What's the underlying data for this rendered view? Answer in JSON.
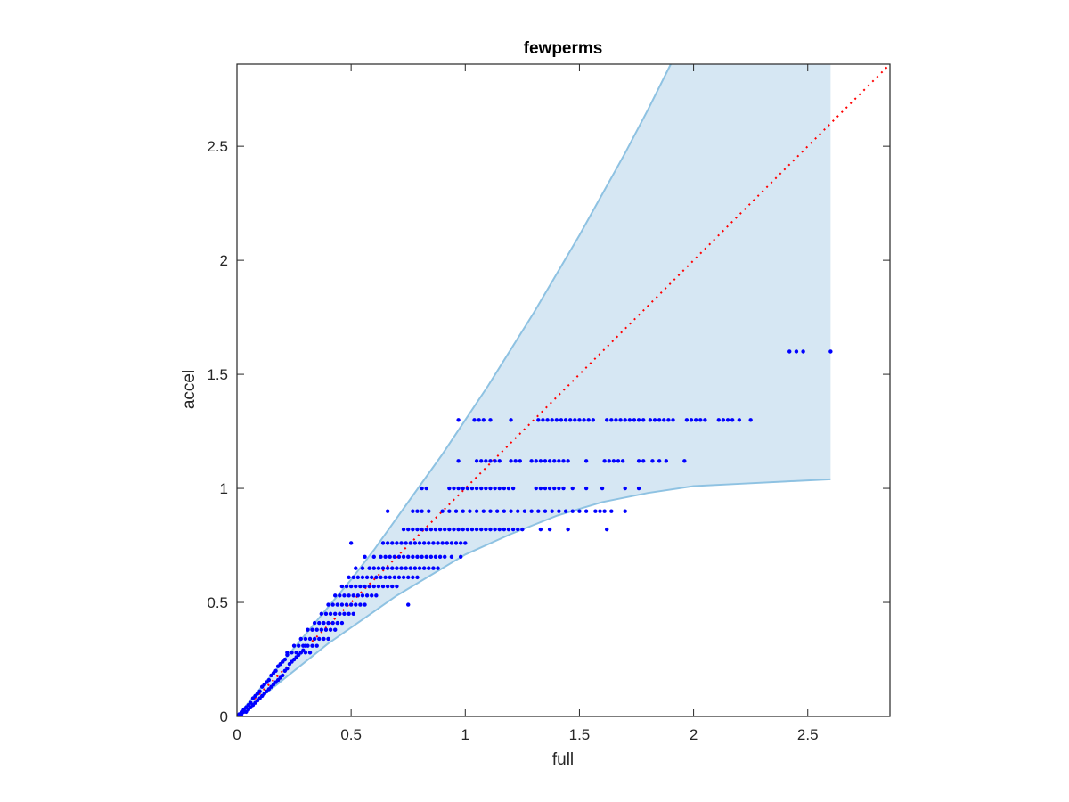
{
  "chart_data": {
    "type": "scatter",
    "title": "fewperms",
    "xlabel": "full",
    "ylabel": "accel",
    "xlim": [
      0,
      2.86
    ],
    "ylim": [
      0,
      2.86
    ],
    "xticks": [
      0,
      0.5,
      1,
      1.5,
      2,
      2.5
    ],
    "yticks": [
      0,
      0.5,
      1,
      1.5,
      2,
      2.5
    ],
    "xtick_labels": [
      "0",
      "0.5",
      "1",
      "1.5",
      "2",
      "2.5"
    ],
    "ytick_labels": [
      "0",
      "0.5",
      "1",
      "1.5",
      "2",
      "2.5"
    ],
    "grid": false,
    "colors": {
      "points": "#0000ff",
      "band_fill": "#d6e7f3",
      "band_edge": "#8ec2e2",
      "reference_line": "#ff0000",
      "axes": "#262626"
    },
    "reference_line": {
      "style": "dotted",
      "x": [
        0,
        2.86
      ],
      "y": [
        0,
        2.86
      ]
    },
    "band": {
      "upper": {
        "x": [
          0,
          0.1,
          0.2,
          0.3,
          0.4,
          0.5,
          0.6,
          0.7,
          0.8,
          0.9,
          1.0,
          1.1,
          1.2,
          1.3,
          1.4,
          1.5,
          1.6,
          1.7,
          1.8,
          1.9
        ],
        "y": [
          0,
          0.12,
          0.24,
          0.36,
          0.48,
          0.6,
          0.73,
          0.87,
          1.01,
          1.15,
          1.3,
          1.45,
          1.61,
          1.77,
          1.94,
          2.11,
          2.29,
          2.47,
          2.66,
          2.86
        ]
      },
      "right_x": 2.6,
      "lower": {
        "x": [
          0,
          0.1,
          0.2,
          0.3,
          0.4,
          0.5,
          0.6,
          0.7,
          0.8,
          0.9,
          1.0,
          1.2,
          1.4,
          1.6,
          1.8,
          2.0,
          2.2,
          2.4,
          2.6
        ],
        "y": [
          0,
          0.08,
          0.16,
          0.24,
          0.32,
          0.39,
          0.46,
          0.53,
          0.59,
          0.65,
          0.71,
          0.8,
          0.88,
          0.94,
          0.98,
          1.01,
          1.02,
          1.03,
          1.04
        ]
      }
    },
    "series": [
      {
        "x": [
          0.0,
          0.01,
          0.02,
          0.02,
          0.03,
          0.03,
          0.04,
          0.04,
          0.05,
          0.05,
          0.06,
          0.06,
          0.07,
          0.07,
          0.08,
          0.08,
          0.09,
          0.09,
          0.1,
          0.1,
          0.11,
          0.11,
          0.12,
          0.12,
          0.13,
          0.13,
          0.14,
          0.14,
          0.15,
          0.15,
          0.16,
          0.16,
          0.17,
          0.17,
          0.18,
          0.18,
          0.19,
          0.19,
          0.2,
          0.2,
          0.21,
          0.21,
          0.22,
          0.22,
          0.23,
          0.24,
          0.25,
          0.26,
          0.27,
          0.28,
          0.29,
          0.3,
          0.22,
          0.24,
          0.26,
          0.28,
          0.3,
          0.32,
          0.25,
          0.27,
          0.29,
          0.31,
          0.33,
          0.35,
          0.28,
          0.3,
          0.32,
          0.34,
          0.36,
          0.38,
          0.4,
          0.31,
          0.33,
          0.35,
          0.37,
          0.39,
          0.41,
          0.43,
          0.34,
          0.36,
          0.38,
          0.4,
          0.42,
          0.44,
          0.46,
          0.37,
          0.39,
          0.41,
          0.43,
          0.45,
          0.47,
          0.49,
          0.51,
          0.4,
          0.42,
          0.44,
          0.46,
          0.48,
          0.5,
          0.52,
          0.54,
          0.56,
          0.75,
          0.43,
          0.45,
          0.47,
          0.49,
          0.51,
          0.53,
          0.55,
          0.57,
          0.59,
          0.61,
          0.46,
          0.48,
          0.5,
          0.52,
          0.54,
          0.56,
          0.58,
          0.6,
          0.62,
          0.64,
          0.66,
          0.68,
          0.7,
          0.49,
          0.51,
          0.53,
          0.55,
          0.57,
          0.59,
          0.61,
          0.63,
          0.65,
          0.67,
          0.69,
          0.71,
          0.73,
          0.75,
          0.77,
          0.79,
          0.52,
          0.55,
          0.58,
          0.6,
          0.62,
          0.64,
          0.66,
          0.68,
          0.7,
          0.72,
          0.74,
          0.76,
          0.78,
          0.8,
          0.82,
          0.84,
          0.86,
          0.88,
          0.56,
          0.6,
          0.63,
          0.65,
          0.67,
          0.69,
          0.71,
          0.73,
          0.75,
          0.77,
          0.79,
          0.81,
          0.83,
          0.85,
          0.87,
          0.89,
          0.91,
          0.94,
          0.98,
          0.5,
          0.64,
          0.66,
          0.68,
          0.7,
          0.72,
          0.74,
          0.76,
          0.78,
          0.8,
          0.82,
          0.84,
          0.86,
          0.88,
          0.9,
          0.92,
          0.94,
          0.96,
          0.98,
          1.0,
          0.73,
          0.75,
          0.77,
          0.79,
          0.81,
          0.83,
          0.85,
          0.87,
          0.89,
          0.91,
          0.93,
          0.95,
          0.97,
          0.99,
          1.01,
          1.03,
          1.05,
          1.07,
          1.09,
          1.11,
          1.13,
          1.15,
          1.17,
          1.19,
          1.21,
          1.23,
          1.25,
          1.33,
          1.37,
          1.45,
          1.62,
          0.66,
          0.77,
          0.79,
          0.81,
          0.84,
          0.9,
          0.93,
          0.96,
          0.99,
          1.02,
          1.05,
          1.08,
          1.11,
          1.14,
          1.17,
          1.2,
          1.23,
          1.26,
          1.29,
          1.32,
          1.35,
          1.38,
          1.41,
          1.44,
          1.47,
          1.5,
          1.53,
          1.57,
          1.59,
          1.61,
          1.64,
          1.7,
          0.81,
          0.83,
          0.93,
          0.95,
          0.97,
          0.99,
          1.01,
          1.03,
          1.05,
          1.07,
          1.09,
          1.11,
          1.13,
          1.15,
          1.17,
          1.19,
          1.21,
          1.31,
          1.33,
          1.35,
          1.37,
          1.39,
          1.41,
          1.43,
          1.47,
          1.53,
          1.6,
          1.7,
          1.76,
          0.97,
          1.05,
          1.07,
          1.09,
          1.11,
          1.13,
          1.15,
          1.2,
          1.22,
          1.24,
          1.29,
          1.31,
          1.33,
          1.35,
          1.37,
          1.39,
          1.41,
          1.43,
          1.45,
          1.53,
          1.61,
          1.63,
          1.65,
          1.67,
          1.69,
          1.76,
          1.78,
          1.82,
          1.85,
          1.88,
          1.96,
          0.97,
          1.04,
          1.06,
          1.08,
          1.11,
          1.2,
          1.32,
          1.34,
          1.36,
          1.38,
          1.4,
          1.42,
          1.44,
          1.46,
          1.48,
          1.5,
          1.52,
          1.54,
          1.56,
          1.62,
          1.64,
          1.66,
          1.68,
          1.7,
          1.72,
          1.74,
          1.76,
          1.78,
          1.81,
          1.83,
          1.85,
          1.87,
          1.89,
          1.91,
          1.97,
          1.99,
          2.01,
          2.03,
          2.05,
          2.11,
          2.13,
          2.15,
          2.17,
          2.2,
          2.25,
          2.42,
          2.45,
          2.48,
          2.6
        ],
        "y": [
          0.0,
          0.01,
          0.02,
          0.01,
          0.03,
          0.02,
          0.04,
          0.02,
          0.05,
          0.03,
          0.06,
          0.04,
          0.08,
          0.05,
          0.09,
          0.06,
          0.1,
          0.07,
          0.11,
          0.08,
          0.13,
          0.09,
          0.14,
          0.1,
          0.15,
          0.11,
          0.16,
          0.12,
          0.18,
          0.13,
          0.19,
          0.14,
          0.2,
          0.15,
          0.22,
          0.16,
          0.23,
          0.17,
          0.24,
          0.18,
          0.25,
          0.2,
          0.27,
          0.21,
          0.23,
          0.24,
          0.25,
          0.26,
          0.27,
          0.28,
          0.29,
          0.31,
          0.28,
          0.28,
          0.28,
          0.28,
          0.28,
          0.28,
          0.31,
          0.31,
          0.31,
          0.31,
          0.31,
          0.31,
          0.34,
          0.34,
          0.34,
          0.34,
          0.34,
          0.34,
          0.34,
          0.38,
          0.38,
          0.38,
          0.38,
          0.38,
          0.38,
          0.38,
          0.41,
          0.41,
          0.41,
          0.41,
          0.41,
          0.41,
          0.41,
          0.45,
          0.45,
          0.45,
          0.45,
          0.45,
          0.45,
          0.45,
          0.45,
          0.49,
          0.49,
          0.49,
          0.49,
          0.49,
          0.49,
          0.49,
          0.49,
          0.49,
          0.49,
          0.53,
          0.53,
          0.53,
          0.53,
          0.53,
          0.53,
          0.53,
          0.53,
          0.53,
          0.53,
          0.57,
          0.57,
          0.57,
          0.57,
          0.57,
          0.57,
          0.57,
          0.57,
          0.57,
          0.57,
          0.57,
          0.57,
          0.57,
          0.61,
          0.61,
          0.61,
          0.61,
          0.61,
          0.61,
          0.61,
          0.61,
          0.61,
          0.61,
          0.61,
          0.61,
          0.61,
          0.61,
          0.61,
          0.61,
          0.65,
          0.65,
          0.65,
          0.65,
          0.65,
          0.65,
          0.65,
          0.65,
          0.65,
          0.65,
          0.65,
          0.65,
          0.65,
          0.65,
          0.65,
          0.65,
          0.65,
          0.65,
          0.7,
          0.7,
          0.7,
          0.7,
          0.7,
          0.7,
          0.7,
          0.7,
          0.7,
          0.7,
          0.7,
          0.7,
          0.7,
          0.7,
          0.7,
          0.7,
          0.7,
          0.7,
          0.7,
          0.76,
          0.76,
          0.76,
          0.76,
          0.76,
          0.76,
          0.76,
          0.76,
          0.76,
          0.76,
          0.76,
          0.76,
          0.76,
          0.76,
          0.76,
          0.76,
          0.76,
          0.76,
          0.76,
          0.76,
          0.82,
          0.82,
          0.82,
          0.82,
          0.82,
          0.82,
          0.82,
          0.82,
          0.82,
          0.82,
          0.82,
          0.82,
          0.82,
          0.82,
          0.82,
          0.82,
          0.82,
          0.82,
          0.82,
          0.82,
          0.82,
          0.82,
          0.82,
          0.82,
          0.82,
          0.82,
          0.82,
          0.82,
          0.82,
          0.82,
          0.82,
          0.9,
          0.9,
          0.9,
          0.9,
          0.9,
          0.9,
          0.9,
          0.9,
          0.9,
          0.9,
          0.9,
          0.9,
          0.9,
          0.9,
          0.9,
          0.9,
          0.9,
          0.9,
          0.9,
          0.9,
          0.9,
          0.9,
          0.9,
          0.9,
          0.9,
          0.9,
          0.9,
          0.9,
          0.9,
          0.9,
          0.9,
          0.9,
          1.0,
          1.0,
          1.0,
          1.0,
          1.0,
          1.0,
          1.0,
          1.0,
          1.0,
          1.0,
          1.0,
          1.0,
          1.0,
          1.0,
          1.0,
          1.0,
          1.0,
          1.0,
          1.0,
          1.0,
          1.0,
          1.0,
          1.0,
          1.0,
          1.0,
          1.0,
          1.0,
          1.0,
          1.0,
          1.12,
          1.12,
          1.12,
          1.12,
          1.12,
          1.12,
          1.12,
          1.12,
          1.12,
          1.12,
          1.12,
          1.12,
          1.12,
          1.12,
          1.12,
          1.12,
          1.12,
          1.12,
          1.12,
          1.12,
          1.12,
          1.12,
          1.12,
          1.12,
          1.12,
          1.12,
          1.12,
          1.12,
          1.12,
          1.12,
          1.12,
          1.3,
          1.3,
          1.3,
          1.3,
          1.3,
          1.3,
          1.3,
          1.3,
          1.3,
          1.3,
          1.3,
          1.3,
          1.3,
          1.3,
          1.3,
          1.3,
          1.3,
          1.3,
          1.3,
          1.3,
          1.3,
          1.3,
          1.3,
          1.3,
          1.3,
          1.3,
          1.3,
          1.3,
          1.3,
          1.3,
          1.3,
          1.3,
          1.3,
          1.3,
          1.3,
          1.3,
          1.3,
          1.3,
          1.3,
          1.3,
          1.3,
          1.3,
          1.3,
          1.3,
          1.3,
          1.6,
          1.6,
          1.6,
          1.6
        ]
      }
    ]
  }
}
